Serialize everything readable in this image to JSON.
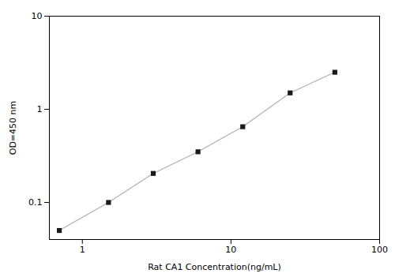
{
  "chart_data": {
    "type": "line",
    "x": [
      0.7,
      1.5,
      3.0,
      6.0,
      12.0,
      25.0,
      50.0
    ],
    "values": [
      0.05,
      0.1,
      0.205,
      0.35,
      0.65,
      1.5,
      2.5
    ],
    "xlabel": "Rat CA1 Concentration(ng/mL)",
    "ylabel": "OD=450 nm",
    "xlim": [
      0.6,
      100
    ],
    "ylim": [
      0.04,
      10
    ],
    "xticks": [
      1,
      10,
      100
    ],
    "yticks": [
      0.1,
      1,
      10
    ],
    "log": true,
    "grid": false,
    "color": "#1a1a1a",
    "marker": "square"
  }
}
